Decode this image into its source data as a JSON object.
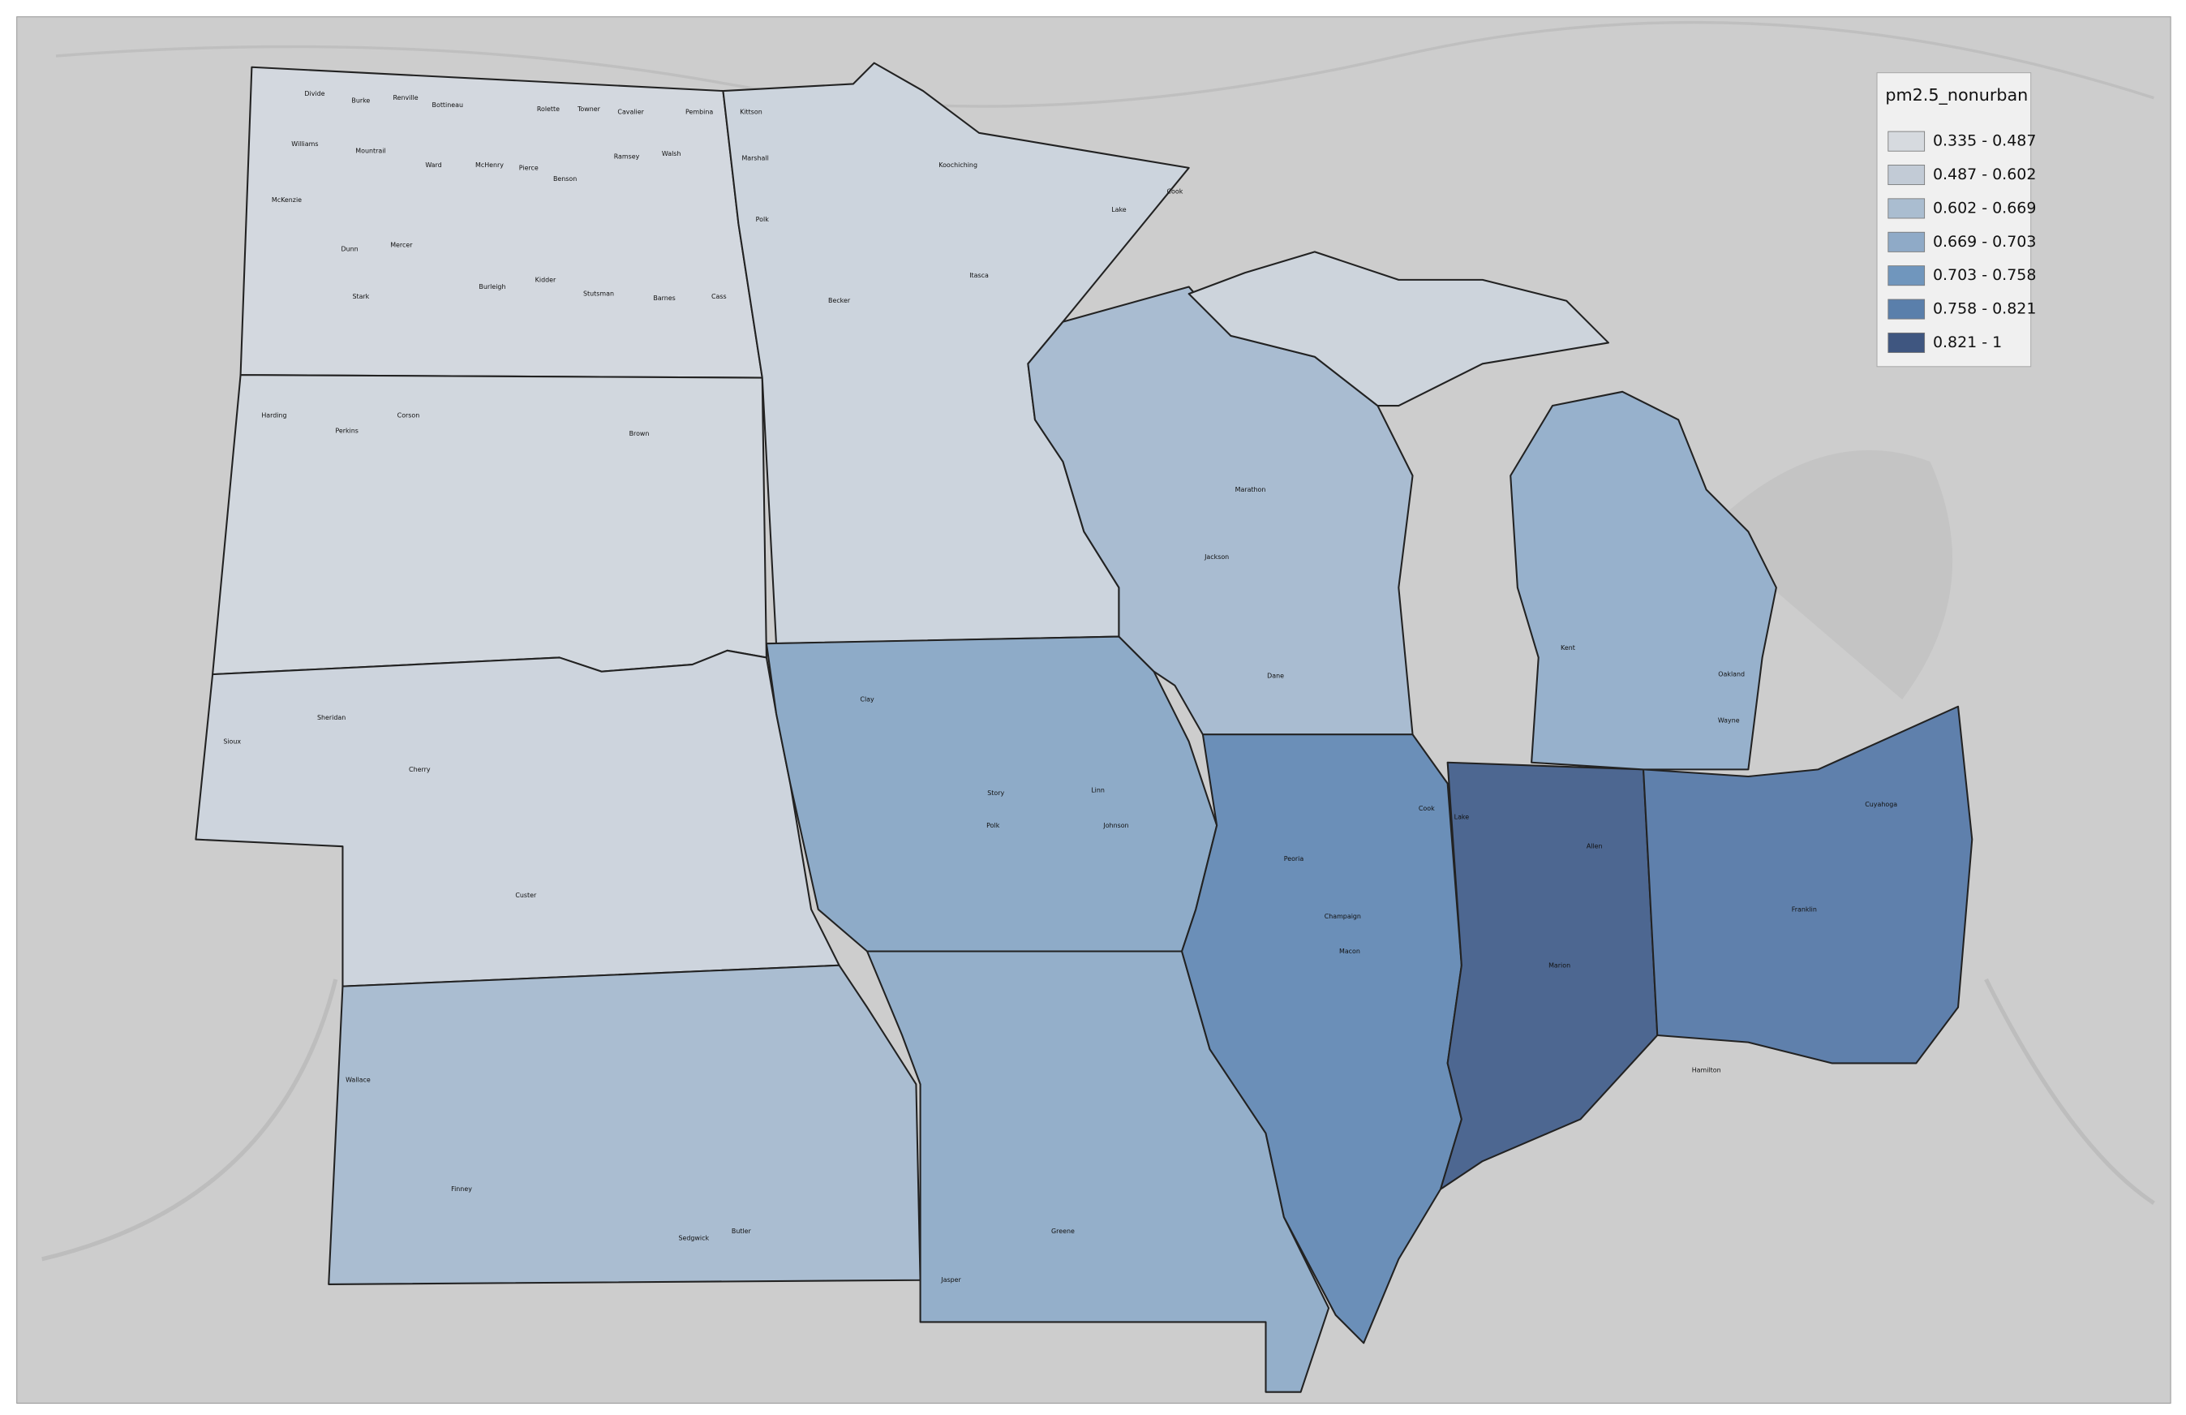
{
  "legend": {
    "title": "pm2.5_nonurban",
    "items": [
      {
        "label": "0.335 - 0.487",
        "color": "#d6dadf"
      },
      {
        "label": "0.487 - 0.602",
        "color": "#c2cbd6"
      },
      {
        "label": "0.602 - 0.669",
        "color": "#aabdd0"
      },
      {
        "label": "0.669 - 0.703",
        "color": "#8faac7"
      },
      {
        "label": "0.703 - 0.758",
        "color": "#7096bd"
      },
      {
        "label": "0.758 - 0.821",
        "color": "#5a7fab"
      },
      {
        "label": "0.821 - 1",
        "color": "#3f5680"
      }
    ]
  },
  "county_labels": [
    "Divide",
    "Burke",
    "Renville",
    "Bottineau",
    "Rolette",
    "Towner",
    "Cavalier",
    "Pembina",
    "Williams",
    "Mountrail",
    "Ward",
    "McHenry",
    "Pierce",
    "Benson",
    "Ramsey",
    "Walsh",
    "McKenzie",
    "Dunn",
    "Mercer",
    "Stark",
    "Burleigh",
    "Kidder",
    "Stutsman",
    "Barnes",
    "Cass",
    "Kittson",
    "Marshall",
    "Polk",
    "Becker",
    "Koochiching",
    "Cook",
    "Lake",
    "Itasca",
    "Harding",
    "Perkins",
    "Corson",
    "Brown",
    "Cherry",
    "Custer",
    "Sheridan",
    "Sioux",
    "Wallace",
    "Finney",
    "Sedgwick",
    "Butler",
    "Story",
    "Polk",
    "Linn",
    "Johnson",
    "Clay",
    "Cook",
    "Dane",
    "Marathon",
    "Jackson",
    "Wayne",
    "Kent",
    "Oakland",
    "Marion",
    "Allen",
    "Franklin",
    "Cuyahoga",
    "Hamilton",
    "Greene",
    "Jasper",
    "Lake",
    "Champaign",
    "Macon",
    "Peoria"
  ]
}
